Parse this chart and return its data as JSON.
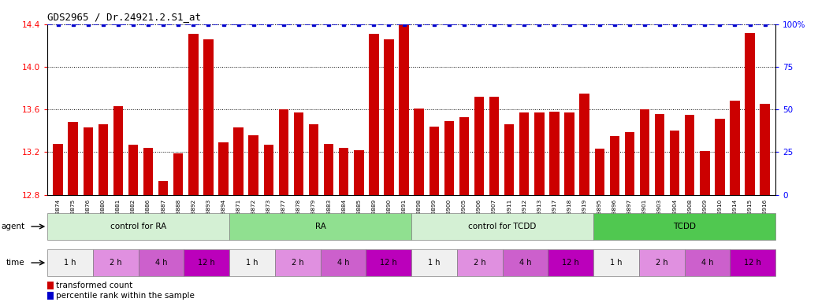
{
  "title": "GDS2965 / Dr.24921.2.S1_at",
  "bar_values": [
    13.28,
    13.48,
    13.43,
    13.46,
    13.63,
    13.27,
    13.24,
    12.93,
    13.19,
    14.31,
    14.26,
    13.29,
    13.43,
    13.36,
    13.27,
    13.6,
    13.57,
    13.46,
    13.28,
    13.24,
    13.22,
    14.31,
    14.26,
    14.42,
    13.61,
    13.44,
    13.49,
    13.53,
    13.72,
    13.72,
    13.46,
    13.57,
    13.57,
    13.58,
    13.57,
    13.75,
    13.23,
    13.35,
    13.39,
    13.6,
    13.56,
    13.4,
    13.55,
    13.21,
    13.51,
    13.68,
    14.32,
    13.65
  ],
  "sample_labels": [
    "GSM228874",
    "GSM228875",
    "GSM228876",
    "GSM228880",
    "GSM228881",
    "GSM228882",
    "GSM228886",
    "GSM228887",
    "GSM228888",
    "GSM228892",
    "GSM228893",
    "GSM228894",
    "GSM228871",
    "GSM228872",
    "GSM228873",
    "GSM228877",
    "GSM228878",
    "GSM228879",
    "GSM228883",
    "GSM228884",
    "GSM228885",
    "GSM228889",
    "GSM228890",
    "GSM228891",
    "GSM228898",
    "GSM228899",
    "GSM228900",
    "GSM228905",
    "GSM228906",
    "GSM228907",
    "GSM228911",
    "GSM228912",
    "GSM228913",
    "GSM228917",
    "GSM228918",
    "GSM228919",
    "GSM228895",
    "GSM228896",
    "GSM228897",
    "GSM228901",
    "GSM228903",
    "GSM228904",
    "GSM228908",
    "GSM228909",
    "GSM228910",
    "GSM228914",
    "GSM228915",
    "GSM228916"
  ],
  "ylim_left": [
    12.8,
    14.4
  ],
  "ylim_right": [
    0,
    100
  ],
  "yticks_left": [
    12.8,
    13.2,
    13.6,
    14.0,
    14.4
  ],
  "yticks_right": [
    0,
    25,
    50,
    75,
    100
  ],
  "bar_color": "#cc0000",
  "percentile_color": "#0000cc",
  "agent_groups": [
    {
      "label": "control for RA",
      "start": 0,
      "end": 12,
      "color": "#d4f0d4"
    },
    {
      "label": "RA",
      "start": 12,
      "end": 24,
      "color": "#90e090"
    },
    {
      "label": "control for TCDD",
      "start": 24,
      "end": 36,
      "color": "#d4f0d4"
    },
    {
      "label": "TCDD",
      "start": 36,
      "end": 48,
      "color": "#50c850"
    }
  ],
  "time_labels": [
    "1 h",
    "2 h",
    "4 h",
    "12 h"
  ],
  "time_colors": [
    "#f0f0f0",
    "#e090e0",
    "#cc60cc",
    "#bb00bb"
  ],
  "samples_per_time": 3,
  "legend_transformed": "transformed count",
  "legend_percentile": "percentile rank within the sample",
  "background_color": "#ffffff"
}
